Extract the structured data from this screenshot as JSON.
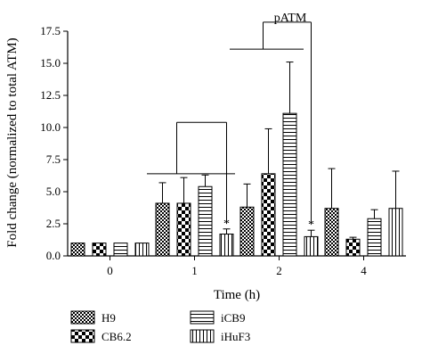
{
  "chart_data": {
    "type": "bar",
    "title": "pATM",
    "xlabel": "Time (h)",
    "ylabel": "Fold change (normalized to total ATM)",
    "categories": [
      "0",
      "1",
      "2",
      "4"
    ],
    "ylim": [
      0,
      17.5
    ],
    "yticks": [
      "0.0",
      "2.5",
      "5.0",
      "7.5",
      "10.0",
      "12.5",
      "15.0",
      "17.5"
    ],
    "grid": false,
    "legend_position": "bottom",
    "significance_marker": "*",
    "series": [
      {
        "name": "H9",
        "pattern": "checker-fine",
        "values": [
          1.0,
          4.1,
          3.8,
          3.7
        ],
        "error": [
          0,
          1.6,
          1.8,
          3.1
        ]
      },
      {
        "name": "CB6.2",
        "pattern": "checker-coarse",
        "values": [
          1.0,
          4.1,
          6.4,
          1.3
        ],
        "error": [
          0,
          2.0,
          3.5,
          0.15
        ]
      },
      {
        "name": "iCB9",
        "pattern": "horizontal-lines",
        "values": [
          1.0,
          5.4,
          11.1,
          2.9
        ],
        "error": [
          0,
          0.9,
          4.0,
          0.7
        ]
      },
      {
        "name": "iHuF3",
        "pattern": "vertical-lines",
        "values": [
          1.0,
          1.7,
          1.5,
          3.7
        ],
        "error": [
          0,
          0.4,
          0.5,
          2.9
        ]
      }
    ],
    "annotations": [
      {
        "category": "1",
        "series": "iHuF3",
        "text": "*"
      },
      {
        "category": "2",
        "series": "iHuF3",
        "text": "*"
      }
    ],
    "brackets": [
      {
        "label": "",
        "left_category": "1",
        "right_category": "1",
        "level": 1
      },
      {
        "label": "",
        "left_category": "2",
        "right_category": "2",
        "level": 1
      }
    ]
  }
}
